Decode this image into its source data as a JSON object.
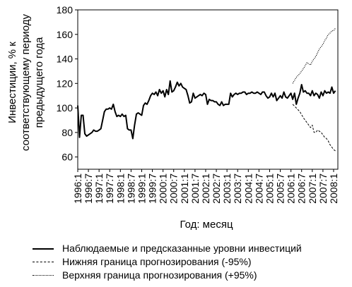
{
  "chart_data": {
    "type": "line",
    "ylabel_lines": [
      "Инвестиции, % к",
      "соответствующему периоду",
      "предыдущего года"
    ],
    "xlabel": "Год: месяц",
    "ylim": [
      50,
      180
    ],
    "yticks": [
      60,
      80,
      100,
      120,
      140,
      160,
      180
    ],
    "xlim": [
      1996.0,
      2008.2
    ],
    "x_tick_labels": [
      "1996:1",
      "1996:7",
      "1997:1",
      "1997:7",
      "1998:1",
      "1998:7",
      "1999:1",
      "1999:7",
      "2000:1",
      "2000:7",
      "2001:1",
      "2001:7",
      "2002:1",
      "2002:7",
      "2003:1",
      "2003:7",
      "2004:1",
      "2004:7",
      "2005:1",
      "2005:7",
      "2006:1",
      "2006:7",
      "2007:1",
      "2007:7",
      "2008:1"
    ],
    "grid": false,
    "legend_position": "bottom",
    "series": [
      {
        "name": "Наблюдаемые и предсказанные уровни инвестиций",
        "style": "solid",
        "x": [
          1996.0,
          1996.083,
          1996.167,
          1996.25,
          1996.333,
          1996.417,
          1996.5,
          1996.583,
          1996.667,
          1996.75,
          1996.833,
          1996.917,
          1997.0,
          1997.083,
          1997.167,
          1997.25,
          1997.333,
          1997.417,
          1997.5,
          1997.583,
          1997.667,
          1997.75,
          1997.833,
          1997.917,
          1998.0,
          1998.083,
          1998.167,
          1998.25,
          1998.333,
          1998.417,
          1998.5,
          1998.583,
          1998.667,
          1998.75,
          1998.833,
          1998.917,
          1999.0,
          1999.083,
          1999.167,
          1999.25,
          1999.333,
          1999.417,
          1999.5,
          1999.583,
          1999.667,
          1999.75,
          1999.833,
          1999.917,
          2000.0,
          2000.083,
          2000.167,
          2000.25,
          2000.333,
          2000.417,
          2000.5,
          2000.583,
          2000.667,
          2000.75,
          2000.833,
          2000.917,
          2001.0,
          2001.083,
          2001.167,
          2001.25,
          2001.333,
          2001.417,
          2001.5,
          2001.583,
          2001.667,
          2001.75,
          2001.833,
          2001.917,
          2002.0,
          2002.083,
          2002.167,
          2002.25,
          2002.333,
          2002.417,
          2002.5,
          2002.583,
          2002.667,
          2002.75,
          2002.833,
          2002.917,
          2003.0,
          2003.083,
          2003.167,
          2003.25,
          2003.333,
          2003.417,
          2003.5,
          2003.583,
          2003.667,
          2003.75,
          2003.833,
          2003.917,
          2004.0,
          2004.083,
          2004.167,
          2004.25,
          2004.333,
          2004.417,
          2004.5,
          2004.583,
          2004.667,
          2004.75,
          2004.833,
          2004.917,
          2005.0,
          2005.083,
          2005.167,
          2005.25,
          2005.333,
          2005.417,
          2005.5,
          2005.583,
          2005.667,
          2005.75,
          2005.833,
          2005.917,
          2006.0,
          2006.083,
          2006.167,
          2006.25,
          2006.333,
          2006.417,
          2006.5,
          2006.583,
          2006.667,
          2006.75,
          2006.833,
          2006.917,
          2007.0,
          2007.083,
          2007.167,
          2007.25,
          2007.333,
          2007.417,
          2007.5,
          2007.583,
          2007.667,
          2007.75,
          2007.833,
          2007.917,
          2008.0,
          2008.083
        ],
        "y": [
          102,
          76,
          94,
          94,
          79,
          77,
          78,
          79,
          80,
          82,
          81,
          81,
          82,
          83,
          90,
          97,
          99,
          99,
          100,
          99,
          103,
          97,
          93,
          94,
          93,
          95,
          93,
          94,
          83,
          82,
          82,
          75,
          86,
          95,
          96,
          95,
          94,
          102,
          104,
          103,
          106,
          110,
          112,
          111,
          113,
          110,
          115,
          112,
          114,
          109,
          115,
          111,
          122,
          113,
          114,
          117,
          121,
          118,
          120,
          117,
          116,
          115,
          110,
          104,
          105,
          112,
          108,
          109,
          110,
          111,
          110,
          112,
          111,
          103,
          107,
          106,
          106,
          105,
          105,
          103,
          102,
          105,
          102,
          103,
          103,
          103,
          112,
          109,
          111,
          112,
          111,
          112,
          112,
          113,
          113,
          111,
          112,
          112,
          113,
          112,
          112,
          113,
          112,
          111,
          113,
          113,
          110,
          108,
          109,
          112,
          109,
          112,
          106,
          108,
          110,
          108,
          113,
          109,
          108,
          110,
          112,
          107,
          112,
          103,
          108,
          112,
          119,
          113,
          114,
          112,
          112,
          110,
          114,
          110,
          112,
          111,
          108,
          113,
          110,
          114,
          112,
          113,
          112,
          117,
          112,
          114
        ]
      },
      {
        "name": "Нижняя граница прогнозирования (-95%)",
        "style": "dashed",
        "x": [
          2006.083,
          2006.25,
          2006.417,
          2006.583,
          2006.75,
          2006.917,
          2007.0,
          2007.083,
          2007.167,
          2007.25,
          2007.333,
          2007.417,
          2007.5,
          2007.583,
          2007.667,
          2007.75,
          2007.833,
          2007.917,
          2008.0,
          2008.083
        ],
        "y": [
          103,
          100,
          97,
          92,
          88,
          84,
          86,
          80,
          80,
          82,
          81,
          80,
          78,
          76,
          75,
          73,
          70,
          68,
          66,
          65
        ]
      },
      {
        "name": "Верхняя граница прогнозирования (+95%)",
        "style": "dotted",
        "x": [
          2006.083,
          2006.25,
          2006.417,
          2006.583,
          2006.75,
          2006.917,
          2007.0,
          2007.083,
          2007.167,
          2007.25,
          2007.333,
          2007.417,
          2007.5,
          2007.583,
          2007.667,
          2007.75,
          2007.833,
          2007.917,
          2008.0,
          2008.083
        ],
        "y": [
          120,
          125,
          128,
          132,
          137,
          135,
          138,
          140,
          142,
          145,
          148,
          150,
          152,
          155,
          157,
          160,
          161,
          163,
          163,
          165
        ]
      }
    ]
  }
}
